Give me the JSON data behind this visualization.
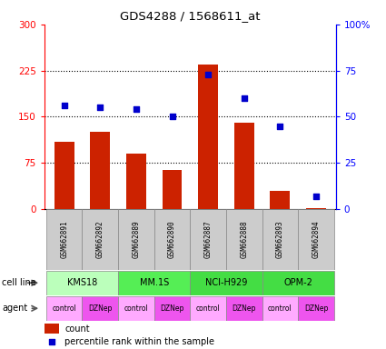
{
  "title": "GDS4288 / 1568611_at",
  "samples": [
    "GSM662891",
    "GSM662892",
    "GSM662889",
    "GSM662890",
    "GSM662887",
    "GSM662888",
    "GSM662893",
    "GSM662894"
  ],
  "counts": [
    110,
    125,
    90,
    63,
    235,
    140,
    30,
    2
  ],
  "percentile_ranks": [
    56,
    55,
    54,
    50,
    73,
    60,
    45,
    7
  ],
  "bar_color": "#cc2200",
  "dot_color": "#0000cc",
  "ylim_left": [
    0,
    300
  ],
  "ylim_right": [
    0,
    100
  ],
  "yticks_left": [
    0,
    75,
    150,
    225,
    300
  ],
  "yticks_right": [
    0,
    25,
    50,
    75,
    100
  ],
  "ytick_labels_left": [
    "0",
    "75",
    "150",
    "225",
    "300"
  ],
  "ytick_labels_right": [
    "0",
    "25",
    "50",
    "75",
    "100%"
  ],
  "hgrid_lines": [
    75,
    150,
    225
  ],
  "cell_lines_info": [
    {
      "name": "KMS18",
      "start": 0,
      "end": 2,
      "color": "#bbffbb"
    },
    {
      "name": "MM.1S",
      "start": 2,
      "end": 4,
      "color": "#55ee55"
    },
    {
      "name": "NCI-H929",
      "start": 4,
      "end": 6,
      "color": "#44dd44"
    },
    {
      "name": "OPM-2",
      "start": 6,
      "end": 8,
      "color": "#44dd44"
    }
  ],
  "agents": [
    "control",
    "DZNep",
    "control",
    "DZNep",
    "control",
    "DZNep",
    "control",
    "DZNep"
  ],
  "agent_color_control": "#ffaaff",
  "agent_color_dznep": "#ee55ee",
  "sample_box_color": "#cccccc",
  "cell_line_label": "cell line",
  "agent_label": "agent",
  "legend_count_label": "count",
  "legend_pct_label": "percentile rank within the sample"
}
